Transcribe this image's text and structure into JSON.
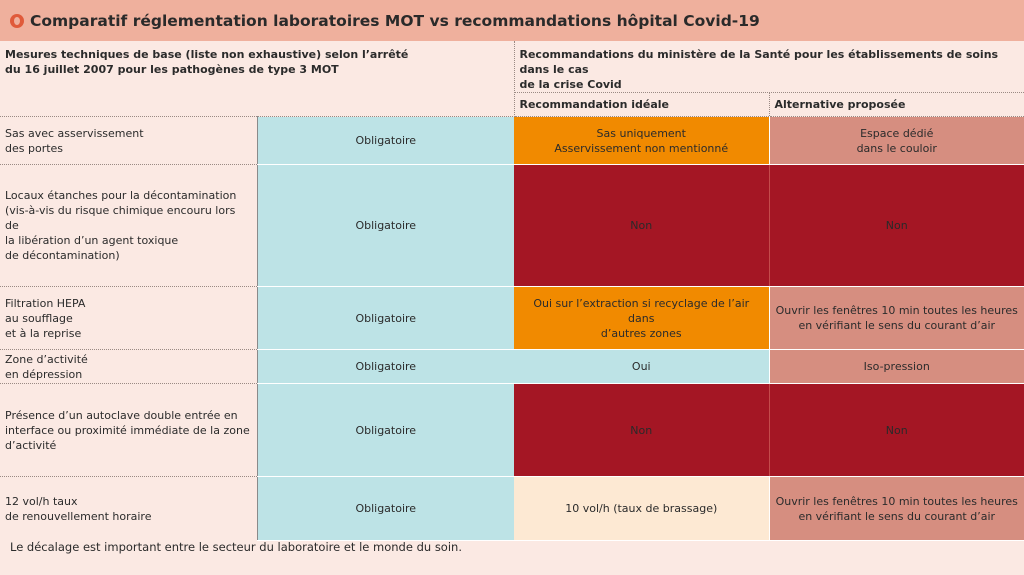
{
  "title": "Comparatif réglementation laboratoires MOT vs recommandations hôpital Covid-19",
  "logo_icon": "c-circle-logo",
  "header": {
    "left": "Mesures techniques de base (liste non exhaustive) selon l’arrêté\ndu 16 juillet 2007 pour les pathogènes de type 3 MOT",
    "right": "Recommandations du ministère de la Santé pour les établissements de soins dans le cas\nde la crise Covid",
    "sub_ideal": "Recommandation idéale",
    "sub_alt": "Alternative proposée"
  },
  "rows": [
    {
      "label": "Sas avec asservissement\ndes portes",
      "mot": "Obligatoire",
      "ideal": "Sas uniquement\nAsservissement non mentionné",
      "alt": "Espace dédié\ndans le couloir"
    },
    {
      "label": "Locaux étanches pour la décontamination\n(vis-à-vis du risque chimique encouru lors de\nla libération d’un agent toxique\nde décontamination)",
      "mot": "Obligatoire",
      "ideal": "Non",
      "alt": "Non"
    },
    {
      "label": "Filtration HEPA\nau soufflage\net à la reprise",
      "mot": "Obligatoire",
      "ideal": "Oui sur l’extraction si recyclage de l’air dans\nd’autres zones",
      "alt": "Ouvrir les fenêtres 10 min toutes les heures\nen vérifiant le sens du courant d’air"
    },
    {
      "label": "Zone d’activité\nen dépression",
      "mot": "Obligatoire",
      "ideal": "Oui",
      "alt": "Iso-pression"
    },
    {
      "label": "Présence d’un autoclave double entrée en\ninterface ou proximité immédiate de la zone\nd’activité",
      "mot": "Obligatoire",
      "ideal": "Non",
      "alt": "Non"
    },
    {
      "label": "12 vol/h taux\nde renouvellement horaire",
      "mot": "Obligatoire",
      "ideal": "10 vol/h (taux de brassage)",
      "alt": "Ouvrir les fenêtres 10 min toutes les heures\nen vérifiant le sens du courant d’air"
    }
  ],
  "colors": {
    "title_bar": "#efb09d",
    "background": "#fbe9e3",
    "blue": "#bde3e6",
    "orange": "#f18a00",
    "pink": "#d68e80",
    "red": "#a41624",
    "cream": "#fde9d3"
  },
  "footer": "Le décalage est important entre le secteur du laboratoire et le monde du soin."
}
